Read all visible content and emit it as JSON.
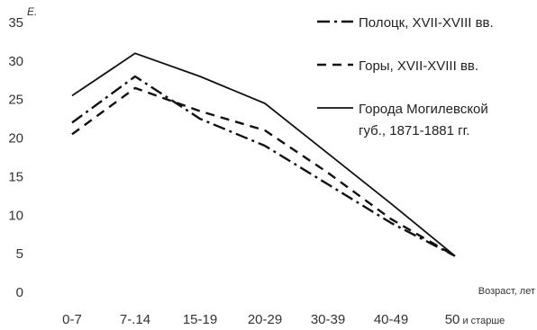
{
  "chart_data": {
    "type": "line",
    "title": "",
    "ylabel": "E.",
    "xlabel": "Возраст, лет",
    "ylim": [
      0,
      35
    ],
    "yticks": [
      0,
      5,
      10,
      15,
      20,
      25,
      30,
      35
    ],
    "categories": [
      "0-7",
      "7-.14",
      "15-19",
      "20-29",
      "30-39",
      "40-49",
      "50 и старше"
    ],
    "series": [
      {
        "name": "Полоцк, XVII-XVIII вв.",
        "style": "dash-dot",
        "values": [
          22,
          28,
          22.5,
          19,
          14,
          9,
          4.7
        ]
      },
      {
        "name": "Горы, XVII-XVIII вв.",
        "style": "dashed",
        "values": [
          20.5,
          26.5,
          23.5,
          21,
          15.5,
          9.5,
          4.7
        ]
      },
      {
        "name": "Города Могилевской губ., 1871-1881 гг.",
        "style": "solid",
        "values": [
          25.5,
          31,
          28,
          24.5,
          18,
          11.5,
          4.7
        ]
      }
    ],
    "legend_position": "top-right",
    "grid": false,
    "line_color": "#111111"
  }
}
